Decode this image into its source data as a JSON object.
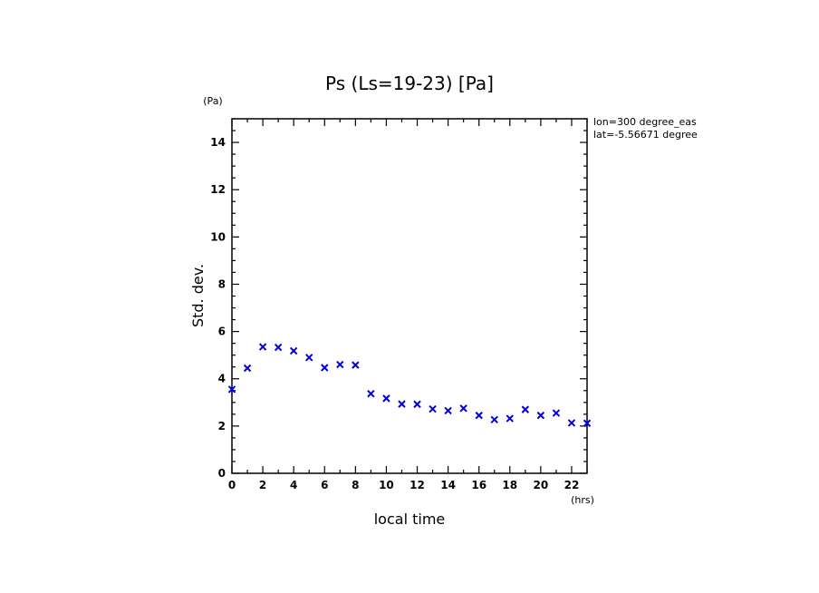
{
  "chart_data": {
    "type": "scatter",
    "title": "Ps (Ls=19-23) [Pa]",
    "xlabel": "local time",
    "ylabel": "Std. dev.",
    "x_unit": "(hrs)",
    "y_unit": "(Pa)",
    "xlim": [
      0,
      23
    ],
    "ylim": [
      0,
      15
    ],
    "x_ticks": [
      0,
      2,
      4,
      6,
      8,
      10,
      12,
      14,
      16,
      18,
      20,
      22
    ],
    "y_ticks": [
      0,
      2,
      4,
      6,
      8,
      10,
      12,
      14
    ],
    "annotations": [
      "lon=300 degree_eas",
      "lat=-5.56671 degree"
    ],
    "marker": "x",
    "marker_color": "#0000dd",
    "series": [
      {
        "x": [
          0,
          1,
          2,
          3,
          4,
          5,
          6,
          7,
          8,
          9,
          10,
          11,
          12,
          13,
          14,
          15,
          16,
          17,
          18,
          19,
          20,
          21,
          22,
          23
        ],
        "y": [
          3.55,
          4.45,
          5.35,
          5.33,
          5.18,
          4.9,
          4.47,
          4.6,
          4.58,
          3.37,
          3.17,
          2.93,
          2.92,
          2.72,
          2.65,
          2.75,
          2.45,
          2.27,
          2.32,
          2.7,
          2.45,
          2.55,
          2.13,
          2.12
        ]
      }
    ]
  }
}
